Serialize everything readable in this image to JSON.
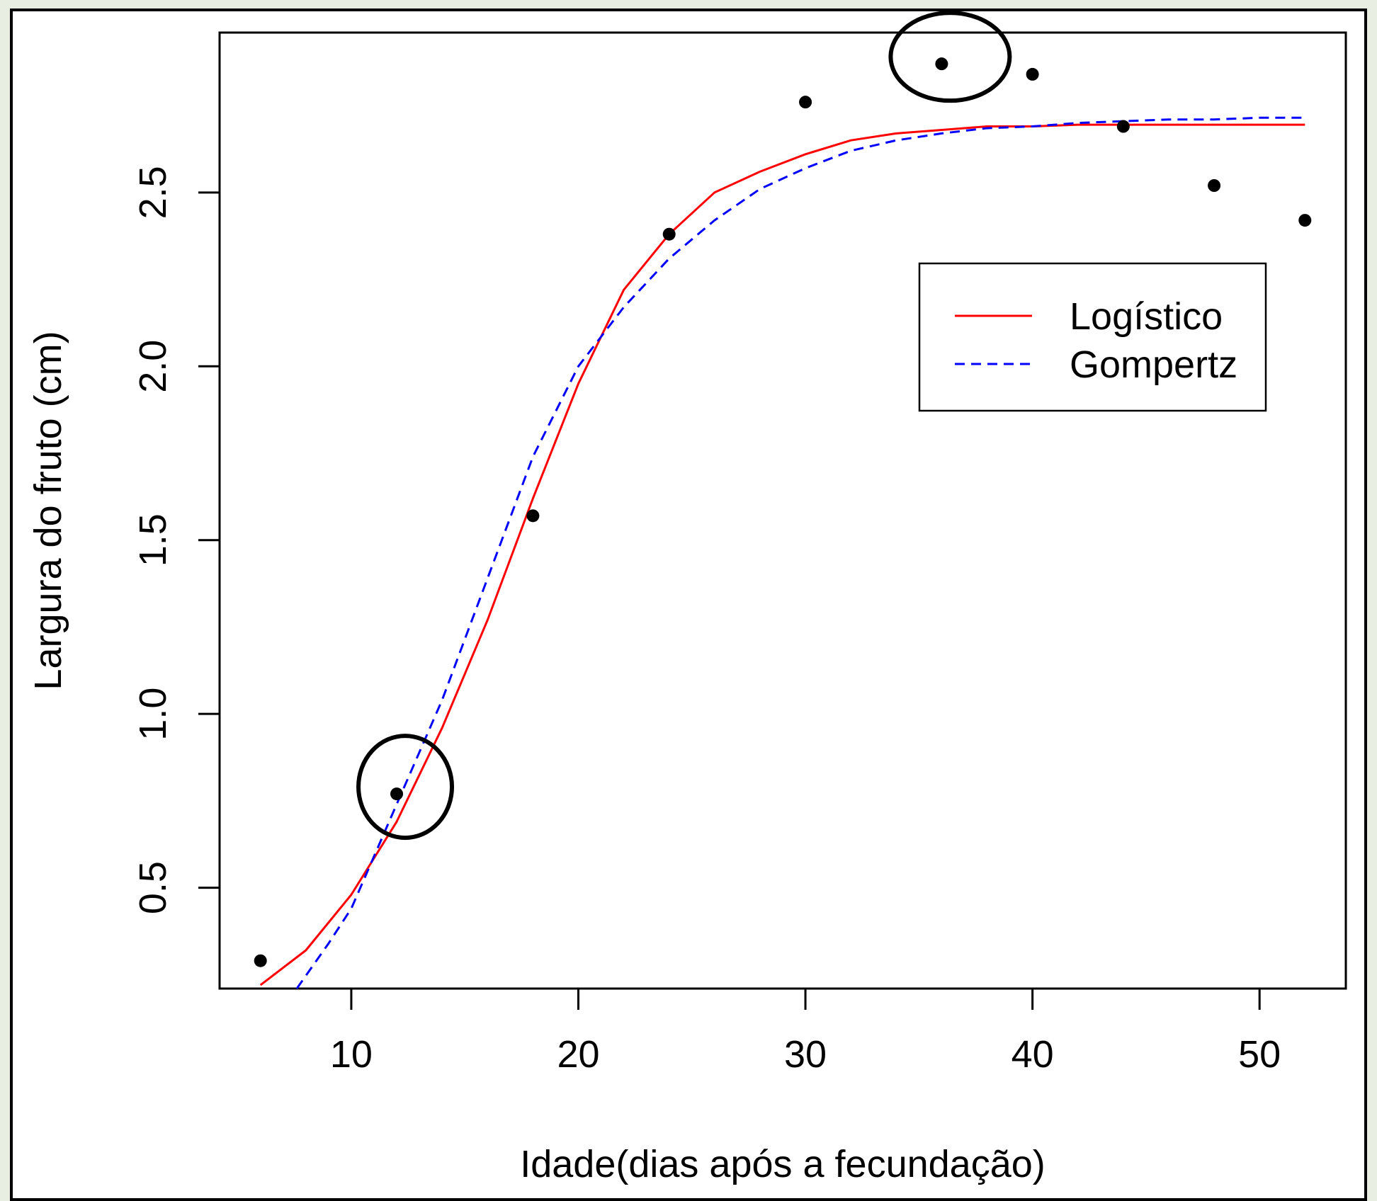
{
  "chart_data": {
    "type": "scatter",
    "xlabel": "Idade(dias após a fecundação)",
    "ylabel": "Largura do fruto (cm)",
    "xlim": [
      4.2,
      53.8
    ],
    "ylim": [
      0.21,
      2.96
    ],
    "x_ticks": [
      10,
      20,
      30,
      40,
      50
    ],
    "x_tick_labels": [
      "10",
      "20",
      "30",
      "40",
      "50"
    ],
    "y_ticks": [
      0.5,
      1.0,
      1.5,
      2.0,
      2.5
    ],
    "y_tick_labels": [
      "0.5",
      "1.0",
      "1.5",
      "2.0",
      "2.5"
    ],
    "points": {
      "x": [
        6,
        12,
        18,
        24,
        30,
        36,
        40,
        44,
        48,
        52
      ],
      "y": [
        0.29,
        0.77,
        1.57,
        2.38,
        2.76,
        2.87,
        2.84,
        2.69,
        2.52,
        2.42
      ]
    },
    "highlighted_points": [
      {
        "x": 12,
        "y": 0.77
      },
      {
        "x": 36,
        "y": 2.87
      }
    ],
    "series": [
      {
        "name": "Logístico",
        "color": "#ff0000",
        "style": "solid",
        "x": [
          6,
          8,
          10,
          12,
          14,
          16,
          18,
          20,
          22,
          24,
          26,
          28,
          30,
          32,
          34,
          36,
          38,
          40,
          42,
          44,
          46,
          48,
          50,
          52
        ],
        "y": [
          0.22,
          0.32,
          0.48,
          0.69,
          0.96,
          1.27,
          1.62,
          1.95,
          2.22,
          2.38,
          2.5,
          2.56,
          2.61,
          2.65,
          2.67,
          2.68,
          2.69,
          2.69,
          2.695,
          2.695,
          2.695,
          2.695,
          2.695,
          2.695
        ]
      },
      {
        "name": "Gompertz",
        "color": "#0000ff",
        "style": "dashed",
        "x": [
          7.6,
          9,
          10,
          12,
          14,
          16,
          18,
          20,
          22,
          24,
          26,
          28,
          30,
          32,
          34,
          36,
          38,
          40,
          42,
          44,
          46,
          48,
          50,
          52
        ],
        "y": [
          0.21,
          0.34,
          0.44,
          0.74,
          1.04,
          1.39,
          1.74,
          2.0,
          2.17,
          2.31,
          2.42,
          2.51,
          2.57,
          2.62,
          2.65,
          2.67,
          2.685,
          2.69,
          2.7,
          2.705,
          2.71,
          2.71,
          2.715,
          2.715
        ]
      }
    ],
    "legend": {
      "position": "top-right",
      "entries": [
        "Logístico",
        "Gompertz"
      ]
    }
  }
}
